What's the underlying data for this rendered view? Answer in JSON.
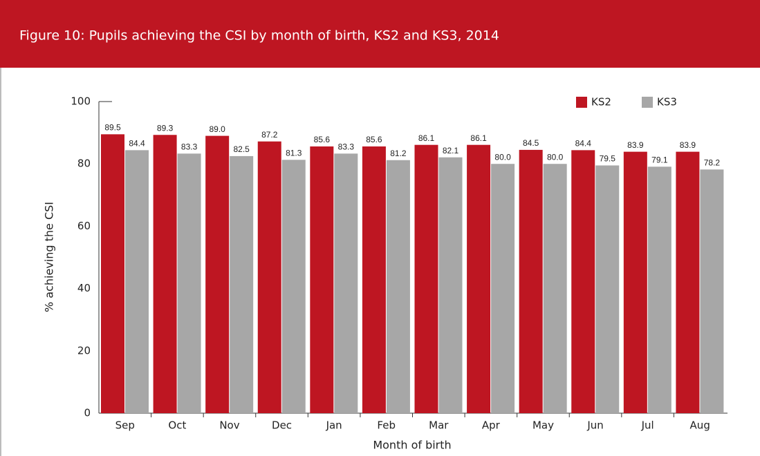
{
  "chart_data": {
    "type": "bar",
    "title": "Figure 10: Pupils achieving the CSI by month of birth, KS2 and KS3, 2014",
    "x_label": "Month of birth",
    "y_label": "% achieving the CSI",
    "categories": [
      "Sep",
      "Oct",
      "Nov",
      "Dec",
      "Jan",
      "Feb",
      "Mar",
      "Apr",
      "May",
      "Jun",
      "Jul",
      "Aug"
    ],
    "series": [
      {
        "name": "KS2",
        "color": "#be1622",
        "values": [
          89.5,
          89.3,
          89.0,
          87.2,
          85.6,
          85.6,
          86.1,
          86.1,
          84.5,
          84.4,
          83.9,
          83.9
        ],
        "value_labels": [
          "89.5",
          "89.3",
          "89.0",
          "87.2",
          "85.6",
          "85.6",
          "86.1",
          "86.1",
          "84.5",
          "84.4",
          "83.9",
          "83.9"
        ]
      },
      {
        "name": "KS3",
        "color": "#a7a7a7",
        "values": [
          84.4,
          83.3,
          82.5,
          81.3,
          83.3,
          81.2,
          82.1,
          80.0,
          80.0,
          79.5,
          79.1,
          78.2
        ],
        "value_labels": [
          "84.4",
          "83.3",
          "82.5",
          "81.3",
          "83.3",
          "81.2",
          "82.1",
          "80.0",
          "80.0",
          "79.5",
          "79.1",
          "78.2"
        ]
      }
    ],
    "ylim": [
      0,
      100
    ],
    "yticks": [
      0,
      20,
      40,
      60,
      80,
      100
    ],
    "grid": false,
    "legend": "top-right"
  }
}
